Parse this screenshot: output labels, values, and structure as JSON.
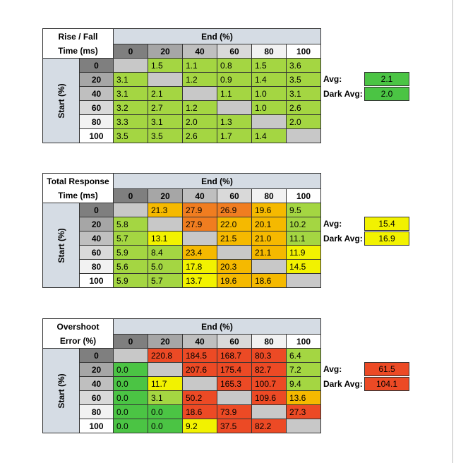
{
  "colors": {
    "header_gray": "#d5dce4",
    "diag_gray": "#c8c8c8",
    "green": "#4bc444",
    "lime": "#a4d642",
    "yellow": "#f2f200",
    "amber": "#f5b900",
    "orange": "#f07d20",
    "red": "#ec4a25"
  },
  "chart_data": [
    {
      "type": "table",
      "title_line1": "Rise / Fall",
      "title_line2": "Time (ms)",
      "col_group_label": "End (%)",
      "row_group_label": "Start (%)",
      "columns": [
        "0",
        "20",
        "40",
        "60",
        "80",
        "100"
      ],
      "rows": [
        "0",
        "20",
        "40",
        "60",
        "80",
        "100"
      ],
      "values": [
        [
          "",
          "1.5",
          "1.1",
          "0.8",
          "1.5",
          "3.6"
        ],
        [
          "3.1",
          "",
          "1.2",
          "0.9",
          "1.4",
          "3.5"
        ],
        [
          "3.1",
          "2.1",
          "",
          "1.1",
          "1.0",
          "3.1"
        ],
        [
          "3.2",
          "2.7",
          "1.2",
          "",
          "1.0",
          "2.6"
        ],
        [
          "3.3",
          "3.1",
          "2.0",
          "1.3",
          "",
          "2.0"
        ],
        [
          "3.5",
          "3.5",
          "2.6",
          "1.7",
          "1.4",
          ""
        ]
      ],
      "avg_label": "Avg:",
      "avg_value": "2.1",
      "dark_avg_label": "Dark Avg:",
      "dark_avg_value": "2.0"
    },
    {
      "type": "table",
      "title_line1": "Total Response",
      "title_line2": "Time (ms)",
      "col_group_label": "End (%)",
      "row_group_label": "Start (%)",
      "columns": [
        "0",
        "20",
        "40",
        "60",
        "80",
        "100"
      ],
      "rows": [
        "0",
        "20",
        "40",
        "60",
        "80",
        "100"
      ],
      "values": [
        [
          "",
          "21.3",
          "27.9",
          "26.9",
          "19.6",
          "9.5"
        ],
        [
          "5.8",
          "",
          "27.9",
          "22.0",
          "20.1",
          "10.2"
        ],
        [
          "5.7",
          "13.1",
          "",
          "21.5",
          "21.0",
          "11.1"
        ],
        [
          "5.9",
          "8.4",
          "23.4",
          "",
          "21.1",
          "11.9"
        ],
        [
          "5.6",
          "5.0",
          "17.8",
          "20.3",
          "",
          "14.5"
        ],
        [
          "5.9",
          "5.7",
          "13.7",
          "19.6",
          "18.6",
          ""
        ]
      ],
      "avg_label": "Avg:",
      "avg_value": "15.4",
      "dark_avg_label": "Dark Avg:",
      "dark_avg_value": "16.9"
    },
    {
      "type": "table",
      "title_line1": "Overshoot",
      "title_line2": "Error (%)",
      "col_group_label": "End (%)",
      "row_group_label": "Start (%)",
      "columns": [
        "0",
        "20",
        "40",
        "60",
        "80",
        "100"
      ],
      "rows": [
        "0",
        "20",
        "40",
        "60",
        "80",
        "100"
      ],
      "values": [
        [
          "",
          "220.8",
          "184.5",
          "168.7",
          "80.3",
          "6.4"
        ],
        [
          "0.0",
          "",
          "207.6",
          "175.4",
          "82.7",
          "7.2"
        ],
        [
          "0.0",
          "11.7",
          "",
          "165.3",
          "100.7",
          "9.4"
        ],
        [
          "0.0",
          "3.1",
          "50.2",
          "",
          "109.6",
          "13.6"
        ],
        [
          "0.0",
          "0.0",
          "18.6",
          "73.9",
          "",
          "27.3"
        ],
        [
          "0.0",
          "0.0",
          "9.2",
          "37.5",
          "82.2",
          ""
        ]
      ],
      "avg_label": "Avg:",
      "avg_value": "61.5",
      "dark_avg_label": "Dark Avg:",
      "dark_avg_value": "104.1"
    }
  ]
}
